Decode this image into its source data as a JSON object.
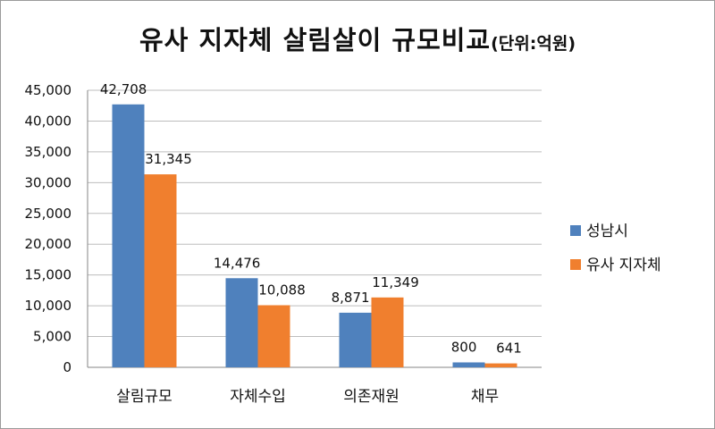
{
  "title": "유사 지자체 살림살이 규모비교",
  "title_unit": "(단위:억원)",
  "chart_data": {
    "type": "bar",
    "categories": [
      "살림규모",
      "자체수입",
      "의존재원",
      "채무"
    ],
    "series": [
      {
        "name": "성남시",
        "values": [
          42708,
          14476,
          8871,
          800
        ],
        "labels": [
          "42,708",
          "14,476",
          "8,871",
          "800"
        ],
        "color": "#4f81bd"
      },
      {
        "name": "유사 지자체",
        "values": [
          31345,
          10088,
          11349,
          641
        ],
        "labels": [
          "31,345",
          "10,088",
          "11,349",
          "641"
        ],
        "color": "#f07f2e"
      }
    ],
    "ylim": [
      0,
      45000
    ],
    "yticks": [
      "0",
      "5,000",
      "10,000",
      "15,000",
      "20,000",
      "25,000",
      "30,000",
      "35,000",
      "40,000",
      "45,000"
    ],
    "grid": true,
    "legend_position": "right"
  }
}
